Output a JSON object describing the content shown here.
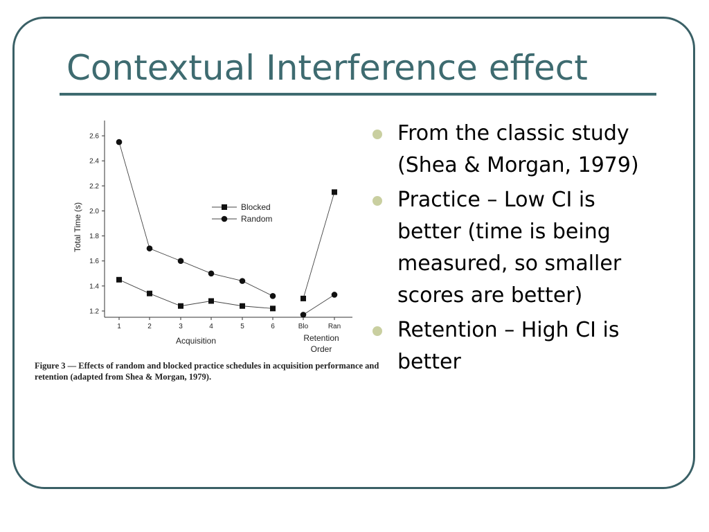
{
  "slide": {
    "title": "Contextual Interference effect",
    "bullets": [
      "From the classic study (Shea & Morgan, 1979)",
      "Practice – Low CI is better (time is being measured, so smaller scores are better)",
      "Retention – High CI is better"
    ],
    "caption": "Figure 3 — Effects of random and blocked practice schedules in acquisition performance and retention (adapted from Shea & Morgan, 1979).",
    "colors": {
      "title": "#3e6b70",
      "frame": "#3a6066",
      "bullet_dot": "#c9cfa0"
    }
  },
  "chart_data": {
    "type": "line",
    "ylabel": "Total Time (s)",
    "xlabel_groups": [
      "Acquisition",
      "Retention\nOrder"
    ],
    "x_ticks": [
      "1",
      "2",
      "3",
      "4",
      "5",
      "6",
      "Blo",
      "Ran"
    ],
    "y_ticks": [
      "1.2",
      "1.4",
      "1.6",
      "1.8",
      "2.0",
      "2.2",
      "2.4",
      "2.6"
    ],
    "ylim": [
      1.15,
      2.7
    ],
    "legend_position": "center-right",
    "series": [
      {
        "name": "Blocked",
        "marker": "square",
        "acquisition": [
          1.45,
          1.34,
          1.24,
          1.28,
          1.24,
          1.22
        ],
        "retention": [
          1.3,
          2.15
        ]
      },
      {
        "name": "Random",
        "marker": "circle",
        "acquisition": [
          2.55,
          1.7,
          1.6,
          1.5,
          1.44,
          1.32
        ],
        "retention": [
          1.17,
          1.33
        ]
      }
    ]
  }
}
